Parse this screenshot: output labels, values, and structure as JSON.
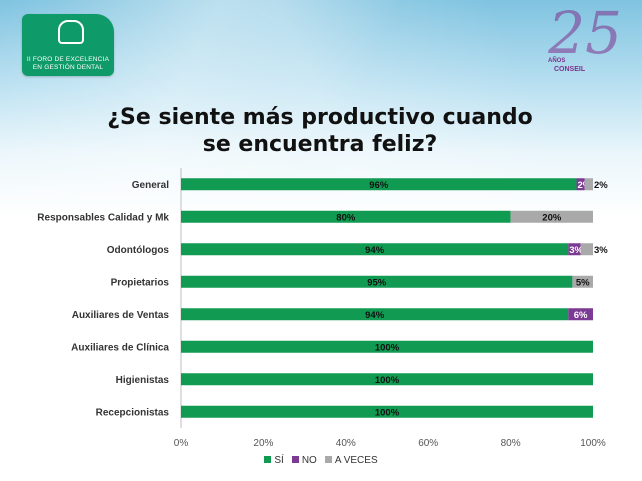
{
  "logo_left": {
    "line1": "II FORO DE EXCELENCIA",
    "line2": "EN GESTIÓN DENTAL"
  },
  "logo_right": {
    "number": "25",
    "small": "AÑOS",
    "name": "CONSEIL"
  },
  "colors": {
    "si": "#109a52",
    "no": "#7b3a93",
    "a_veces": "#a9a9a9"
  },
  "chart_data": {
    "type": "bar",
    "orientation": "horizontal",
    "stacked": true,
    "title": "¿Se siente más productivo cuando se encuentra feliz?",
    "title_lines": [
      "¿Se siente más productivo cuando",
      "se encuentra feliz?"
    ],
    "categories": [
      "General",
      "Responsables Calidad y Mk",
      "Odontólogos",
      "Propietarios",
      "Auxiliares de Ventas",
      "Auxiliares de Clínica",
      "Higienistas",
      "Recepcionistas"
    ],
    "series": [
      {
        "name": "SÍ",
        "color": "#109a52",
        "values": [
          96,
          80,
          94,
          95,
          94,
          100,
          100,
          100
        ],
        "labels": [
          "96%",
          "80%",
          "94%",
          "95%",
          "94%",
          "100%",
          "100%",
          "100%"
        ]
      },
      {
        "name": "NO",
        "color": "#7b3a93",
        "values": [
          2,
          0,
          3,
          0,
          6,
          0,
          0,
          0
        ],
        "labels": [
          "2%",
          "",
          "3%",
          "",
          "6%",
          "",
          "",
          ""
        ]
      },
      {
        "name": "A VECES",
        "color": "#a9a9a9",
        "values": [
          2,
          20,
          3,
          5,
          0,
          0,
          0,
          0
        ],
        "labels": [
          "2%",
          "20%",
          "3%",
          "5%",
          "",
          "",
          "",
          ""
        ]
      }
    ],
    "xlim": [
      0,
      100
    ],
    "x_ticks": [
      "0%",
      "20%",
      "40%",
      "60%",
      "80%",
      "100%"
    ],
    "grid": false,
    "legend": "bottom"
  }
}
